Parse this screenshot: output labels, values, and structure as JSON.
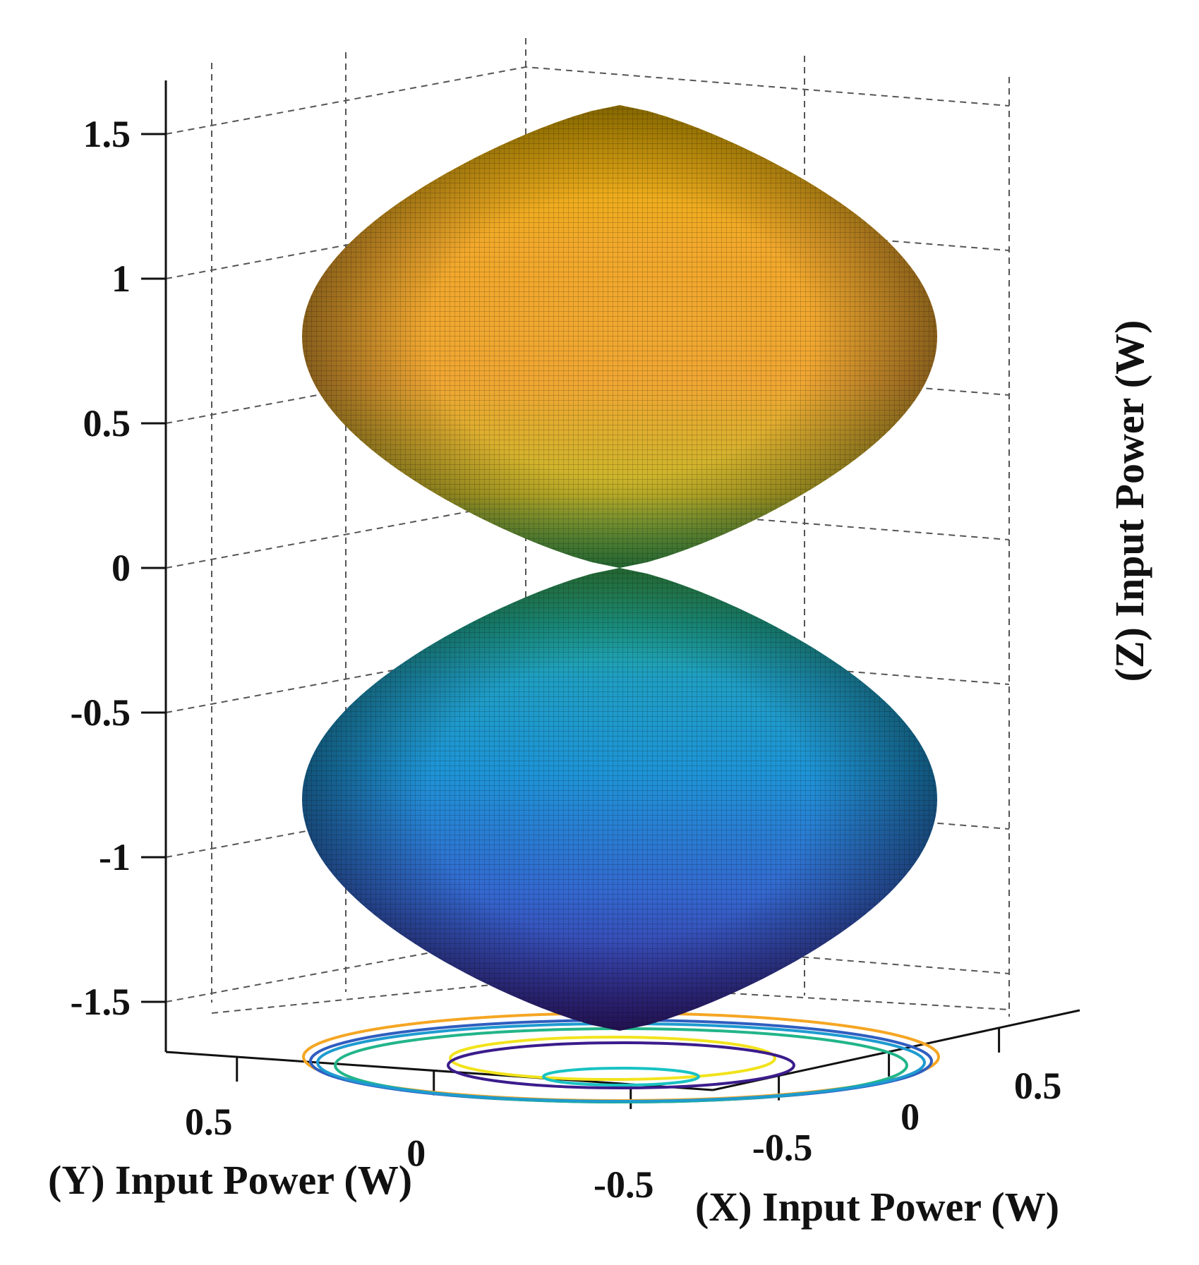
{
  "chart_data": {
    "type": "surface3d",
    "title": "",
    "surface": {
      "shape": "dipole pattern (two lobes along Z)",
      "lobes": [
        {
          "name": "upper lobe",
          "z_range": [
            0,
            1.6
          ],
          "max_radius": 0.9
        },
        {
          "name": "lower lobe",
          "z_range": [
            -1.6,
            0
          ],
          "max_radius": 0.9
        }
      ],
      "colormap": [
        "#3b1c8c",
        "#2f5ec0",
        "#1e9bd0",
        "#22b58a",
        "#7cc63a",
        "#e6b31c",
        "#f5a623"
      ]
    },
    "z_axis": {
      "label": "(Z) Input Power (W)",
      "ticks": [
        "1.5",
        "1",
        "0.5",
        "0",
        "-0.5",
        "-1",
        "-1.5"
      ],
      "tick_values": [
        1.5,
        1,
        0.5,
        0,
        -0.5,
        -1,
        -1.5
      ],
      "range": [
        -1.6,
        1.6
      ]
    },
    "y_axis": {
      "label": "(Y) Input Power (W)",
      "ticks": [
        "0.5",
        "0",
        "-0.5"
      ],
      "tick_values": [
        0.5,
        0,
        -0.5
      ]
    },
    "x_axis": {
      "label": "(X) Input Power (W)",
      "ticks": [
        "-0.5",
        "0",
        "0.5"
      ],
      "tick_values": [
        -0.5,
        0,
        0.5
      ]
    },
    "contours": {
      "plane": "z = -1.6",
      "count": 7,
      "colors": [
        "#f5a623",
        "#2f5ec0",
        "#22b58a",
        "#1e9bd0",
        "#f2e31c",
        "#3b1c8c",
        "#19c2c2"
      ]
    },
    "grid": true
  }
}
